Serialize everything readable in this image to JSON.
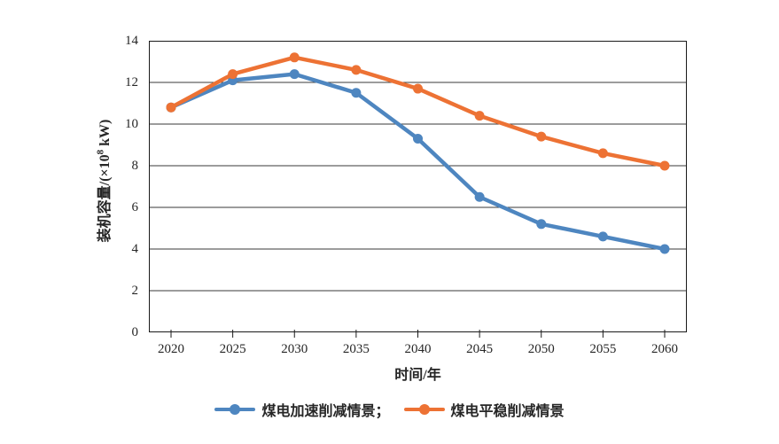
{
  "colors": {
    "background": "#ffffff",
    "axis": "#1a1a1a",
    "grid": "#3a3a3a",
    "text": "#262626",
    "series_accelerated_blue": "#4E86C0",
    "series_steady_orange": "#ED7234"
  },
  "chart_data": {
    "type": "line",
    "title": "",
    "categories": [
      "2020",
      "2025",
      "2030",
      "2035",
      "2040",
      "2045",
      "2050",
      "2055",
      "2060"
    ],
    "series": [
      {
        "name": "煤电加速削减情景",
        "legend_label": "煤电加速削减情景；",
        "color": "#4E86C0",
        "values": [
          10.8,
          12.1,
          12.4,
          11.5,
          9.3,
          6.5,
          5.2,
          4.6,
          4.0
        ]
      },
      {
        "name": "煤电平稳削减情景",
        "legend_label": "煤电平稳削减情景",
        "color": "#ED7234",
        "values": [
          10.8,
          12.4,
          13.2,
          12.6,
          11.7,
          10.4,
          9.4,
          8.6,
          8.0
        ]
      }
    ],
    "xlabel": "时间/年",
    "ylabel": "装机容量/(×10⁸ kW)",
    "ylabel_parts": {
      "prefix": "装机容量/(×10",
      "sup": "8",
      "suffix": " kW)"
    },
    "ylim": [
      0,
      14
    ],
    "yticks": [
      0,
      2,
      4,
      6,
      8,
      10,
      12,
      14
    ],
    "grid": "horizontal",
    "legend_position": "bottom",
    "marker": "circle"
  }
}
